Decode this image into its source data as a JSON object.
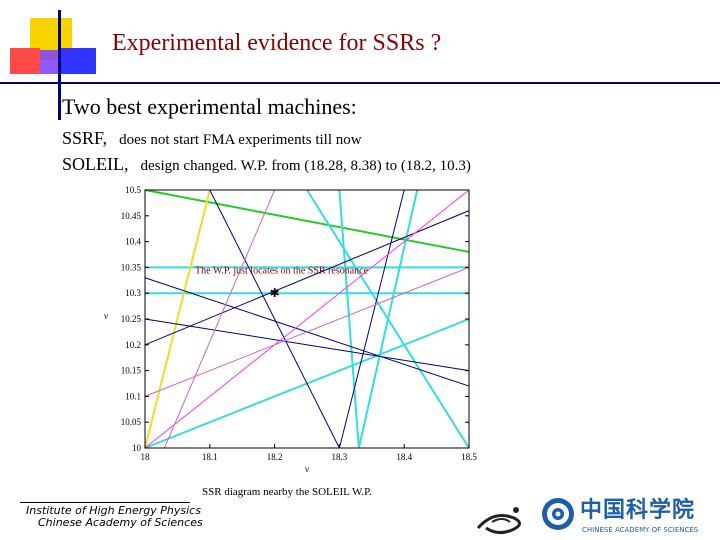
{
  "slide": {
    "title": "Experimental evidence for SSRs ?",
    "subheading": "Two best experimental machines:",
    "machines": [
      {
        "name": "SSRF,",
        "note": "does not start FMA experiments till now"
      },
      {
        "name": "SOLEIL,",
        "note": "design changed. W.P. from (18.28, 8.38) to (18.2, 10.3)"
      }
    ],
    "caption": "SSR diagram nearby the SOLEIL W.P.",
    "footer": {
      "institute_line1": "Institute of High Energy Physics",
      "institute_line2": "Chinese Academy of Sciences",
      "cas_name": "中国科学院",
      "cas_subtitle": "CHINESE ACADEMY OF SCIENCES"
    }
  },
  "chart_data": {
    "type": "line",
    "xlabel": "ν",
    "ylabel": "ν",
    "xlim": [
      18.0,
      18.5
    ],
    "ylim": [
      10.0,
      10.5
    ],
    "x_ticks": [
      "18",
      "18.1",
      "18.2",
      "18.3",
      "18.4",
      "18.5"
    ],
    "y_ticks": [
      "10",
      "10.05",
      "10.1",
      "10.15",
      "10.2",
      "10.25",
      "10.3",
      "10.35",
      "10.4",
      "10.45",
      "10.5"
    ],
    "annotation": "The W.P. just locates on the SSR resonance",
    "working_point": {
      "x": 18.2,
      "y": 10.3
    },
    "lines": [
      {
        "color": "#22cc22",
        "width": 2,
        "x1": 18.0,
        "y1": 10.5,
        "x2": 18.5,
        "y2": 10.38
      },
      {
        "color": "#33dddd",
        "width": 2,
        "x1": 18.0,
        "y1": 10.35,
        "x2": 18.5,
        "y2": 10.35
      },
      {
        "color": "#33dddd",
        "width": 2,
        "x1": 18.0,
        "y1": 10.3,
        "x2": 18.5,
        "y2": 10.3
      },
      {
        "color": "#33dddd",
        "width": 2,
        "x1": 18.25,
        "y1": 10.5,
        "x2": 18.5,
        "y2": 10.0
      },
      {
        "color": "#33dddd",
        "width": 2,
        "x1": 18.0,
        "y1": 10.0,
        "x2": 18.5,
        "y2": 10.25
      },
      {
        "color": "#33dddd",
        "width": 2,
        "x1": 18.3,
        "y1": 10.5,
        "x2": 18.33,
        "y2": 10.0
      },
      {
        "color": "#33dddd",
        "width": 2,
        "x1": 18.33,
        "y1": 10.0,
        "x2": 18.42,
        "y2": 10.5
      },
      {
        "color": "#eedd22",
        "width": 2,
        "x1": 18.0,
        "y1": 10.0,
        "x2": 18.1,
        "y2": 10.5
      },
      {
        "color": "#000080",
        "width": 1,
        "x1": 18.0,
        "y1": 10.33,
        "x2": 18.5,
        "y2": 10.12
      },
      {
        "color": "#000080",
        "width": 1,
        "x1": 18.0,
        "y1": 10.2,
        "x2": 18.5,
        "y2": 10.46
      },
      {
        "color": "#000080",
        "width": 1,
        "x1": 18.1,
        "y1": 10.5,
        "x2": 18.3,
        "y2": 10.0
      },
      {
        "color": "#000080",
        "width": 1,
        "x1": 18.3,
        "y1": 10.0,
        "x2": 18.4,
        "y2": 10.5
      },
      {
        "color": "#000080",
        "width": 1,
        "x1": 18.0,
        "y1": 10.25,
        "x2": 18.5,
        "y2": 10.15
      },
      {
        "color": "#ff33ff",
        "width": 1,
        "x1": 18.0,
        "y1": 10.0,
        "x2": 18.5,
        "y2": 10.5
      },
      {
        "color": "#cc66cc",
        "width": 1,
        "x1": 18.0,
        "y1": 10.1,
        "x2": 18.5,
        "y2": 10.35
      },
      {
        "color": "#cc66cc",
        "width": 1,
        "x1": 18.03,
        "y1": 10.0,
        "x2": 18.2,
        "y2": 10.5
      }
    ]
  }
}
